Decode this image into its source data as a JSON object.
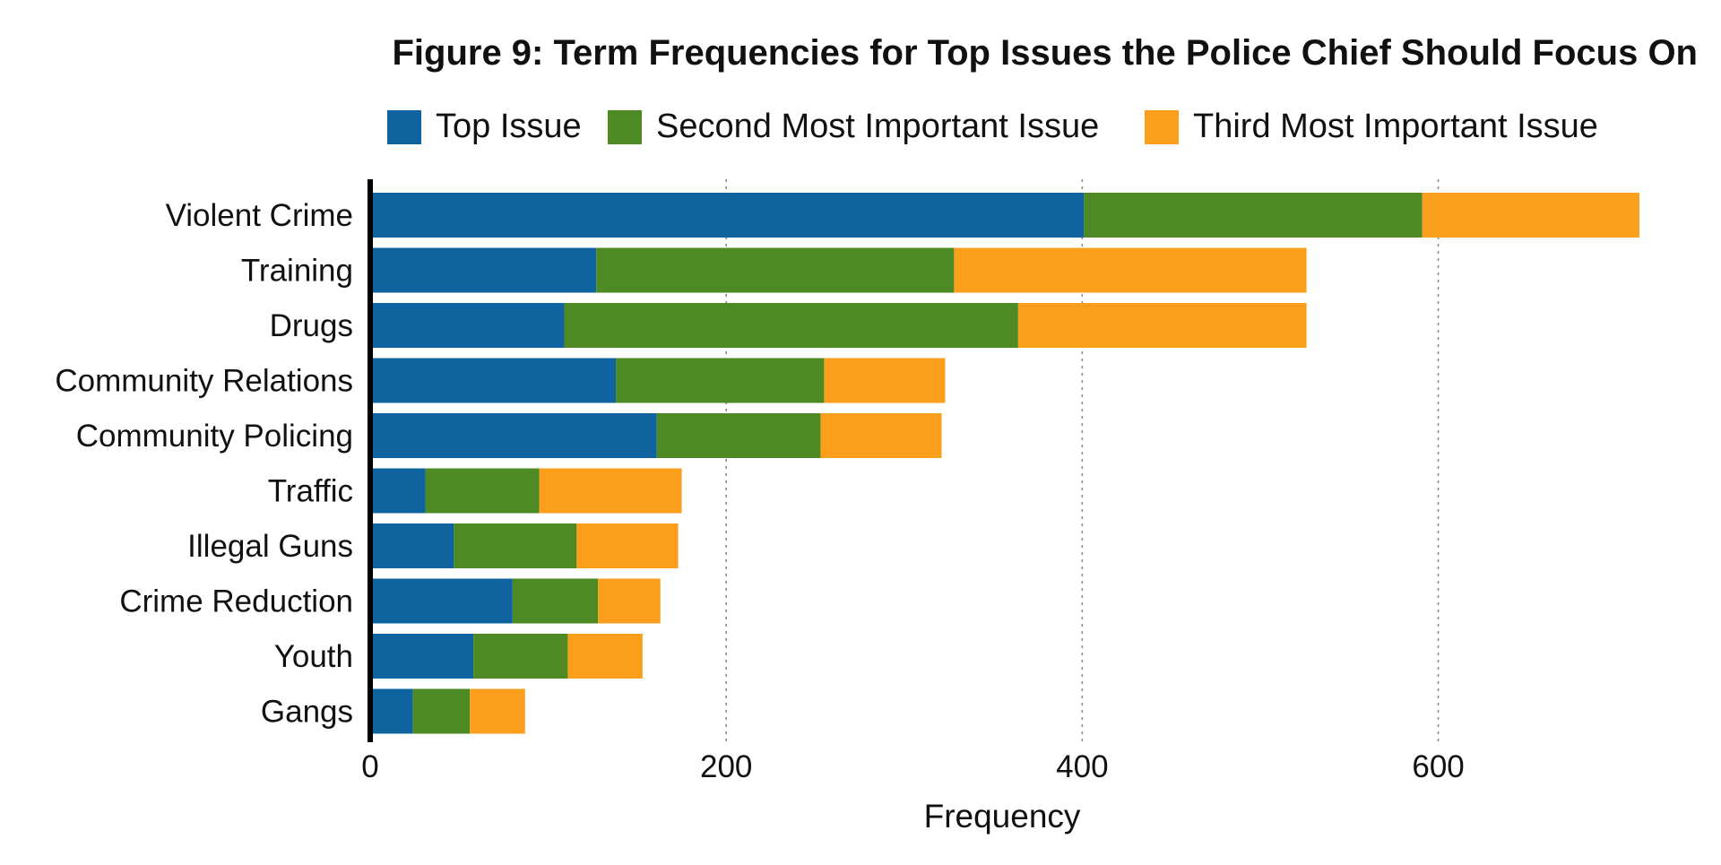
{
  "chart_data": {
    "type": "bar",
    "orientation": "horizontal",
    "stacked": true,
    "title": "Figure 9: Term Frequencies for Top Issues the Police Chief Should Focus On",
    "xlabel": "Frequency",
    "ylabel": "",
    "xlim": [
      0,
      712
    ],
    "xticks": [
      0,
      200,
      400,
      600
    ],
    "grid": {
      "x": true,
      "style": "dotted"
    },
    "legend_position": "top",
    "categories": [
      "Violent Crime",
      "Training",
      "Drugs",
      "Community Relations",
      "Community Policing",
      "Traffic",
      "Illegal Guns",
      "Crime Reduction",
      "Youth",
      "Gangs"
    ],
    "series": [
      {
        "name": "Top Issue",
        "color": "#0f64a0",
        "values": [
          401,
          127,
          109,
          138,
          161,
          31,
          47,
          80,
          58,
          24
        ]
      },
      {
        "name": "Second Most Important Issue",
        "color": "#4d8a24",
        "values": [
          190,
          201,
          255,
          117,
          92,
          64,
          69,
          48,
          53,
          32
        ]
      },
      {
        "name": "Third Most Important Issue",
        "color": "#fb9e1c",
        "values": [
          122,
          198,
          162,
          68,
          68,
          80,
          57,
          35,
          42,
          31
        ]
      }
    ]
  }
}
